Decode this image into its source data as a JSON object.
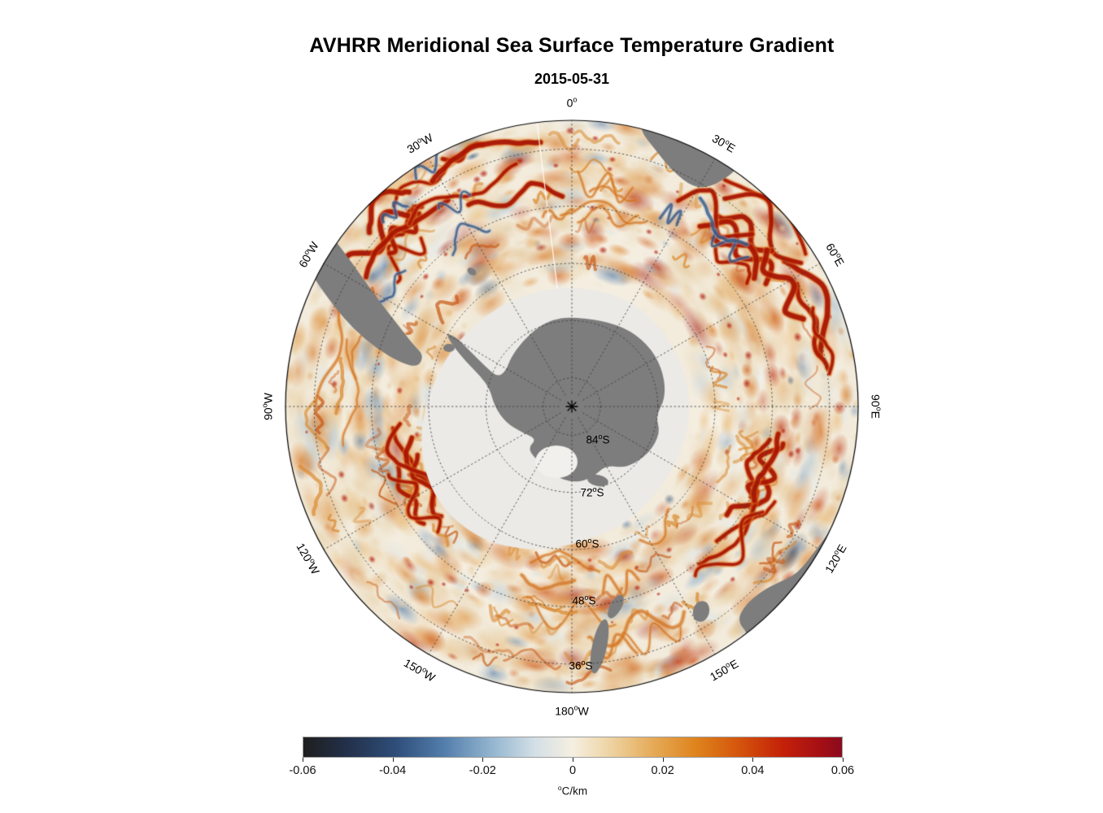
{
  "title": "AVHRR Meridional Sea Surface Temperature Gradient",
  "subtitle": "2015-05-31",
  "colors": {
    "background": "#ffffff",
    "land": "#7d7d7d",
    "ice": "#ebeae6",
    "ocean_base": "#f3ecdd",
    "graticule": "#3c3c3c",
    "map_outline": "#000000",
    "label_text": "#111111"
  },
  "chart_data": {
    "type": "heatmap",
    "title": "AVHRR Meridional Sea Surface Temperature Gradient",
    "subtitle_date": "2015-05-31",
    "projection": "south-polar stereographic (Antarctica centered)",
    "deg_mark": "o",
    "latitude_rings_deg_s": [
      84,
      72,
      60,
      48,
      36
    ],
    "outer_latitude_deg_s": 30,
    "longitude_spokes_deg": [
      0,
      30,
      60,
      90,
      120,
      150,
      180,
      210,
      240,
      270,
      300,
      330
    ],
    "value_units": "°C/km",
    "value_range": [
      -0.06,
      0.06
    ],
    "meridian_labels": [
      {
        "text": "0°",
        "value": "0",
        "suffix": "",
        "azimuth_deg": 0
      },
      {
        "text": "30°E",
        "value": "30",
        "suffix": "E",
        "azimuth_deg": 30
      },
      {
        "text": "60°E",
        "value": "60",
        "suffix": "E",
        "azimuth_deg": 60
      },
      {
        "text": "90°E",
        "value": "90",
        "suffix": "E",
        "azimuth_deg": 90
      },
      {
        "text": "120°E",
        "value": "120",
        "suffix": "E",
        "azimuth_deg": 120
      },
      {
        "text": "150°E",
        "value": "150",
        "suffix": "E",
        "azimuth_deg": 150
      },
      {
        "text": "180°W",
        "value": "180",
        "suffix": "W",
        "azimuth_deg": 180
      },
      {
        "text": "150°W",
        "value": "150",
        "suffix": "W",
        "azimuth_deg": 210
      },
      {
        "text": "120°W",
        "value": "120",
        "suffix": "W",
        "azimuth_deg": 240
      },
      {
        "text": "90°W",
        "value": "90",
        "suffix": "W",
        "azimuth_deg": 270
      },
      {
        "text": "60°W",
        "value": "60",
        "suffix": "W",
        "azimuth_deg": 300
      },
      {
        "text": "30°W",
        "value": "30",
        "suffix": "W",
        "azimuth_deg": 330
      }
    ],
    "parallel_labels": [
      {
        "text": "84°S",
        "value": "84",
        "suffix": "S"
      },
      {
        "text": "72°S",
        "value": "72",
        "suffix": "S"
      },
      {
        "text": "60°S",
        "value": "60",
        "suffix": "S"
      },
      {
        "text": "48°S",
        "value": "48",
        "suffix": "S"
      },
      {
        "text": "36°S",
        "value": "36",
        "suffix": "S"
      }
    ],
    "colorbar": {
      "min": -0.06,
      "max": 0.06,
      "ticks": [
        "-0.06",
        "-0.04",
        "-0.02",
        "0",
        "0.02",
        "0.04",
        "0.06"
      ],
      "label": "°C/km",
      "label_sup": "o",
      "label_main": "C/km",
      "stops": [
        {
          "pos": 0.0,
          "color": "#1e1e1e"
        },
        {
          "pos": 0.08,
          "color": "#23304a"
        },
        {
          "pos": 0.17,
          "color": "#2e4d78"
        },
        {
          "pos": 0.26,
          "color": "#527dab"
        },
        {
          "pos": 0.35,
          "color": "#93b5cf"
        },
        {
          "pos": 0.43,
          "color": "#d3dfe6"
        },
        {
          "pos": 0.5,
          "color": "#f5efe1"
        },
        {
          "pos": 0.57,
          "color": "#eed3a2"
        },
        {
          "pos": 0.65,
          "color": "#e5aa57"
        },
        {
          "pos": 0.73,
          "color": "#de831c"
        },
        {
          "pos": 0.81,
          "color": "#d4540c"
        },
        {
          "pos": 0.89,
          "color": "#c42108"
        },
        {
          "pos": 0.96,
          "color": "#a50f15"
        },
        {
          "pos": 1.0,
          "color": "#8a0b1e"
        }
      ]
    }
  }
}
